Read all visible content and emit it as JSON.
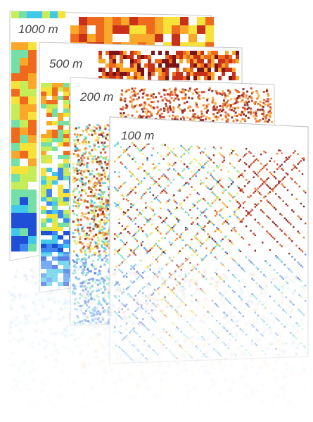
{
  "layers": [
    {
      "label": "1000 m"
    },
    {
      "label": "500 m"
    },
    {
      "label": "200 m"
    },
    {
      "label": "100 m"
    }
  ],
  "colors": {
    "heat": [
      "#1f4fd6",
      "#3f86f0",
      "#42c8e8",
      "#74e0a8",
      "#c6ec57",
      "#f7e23a",
      "#f9a829",
      "#ef6a1d",
      "#c9301a",
      "#7a1416"
    ],
    "frame_edge": "#c8c8c8",
    "label_text": "#444444"
  }
}
